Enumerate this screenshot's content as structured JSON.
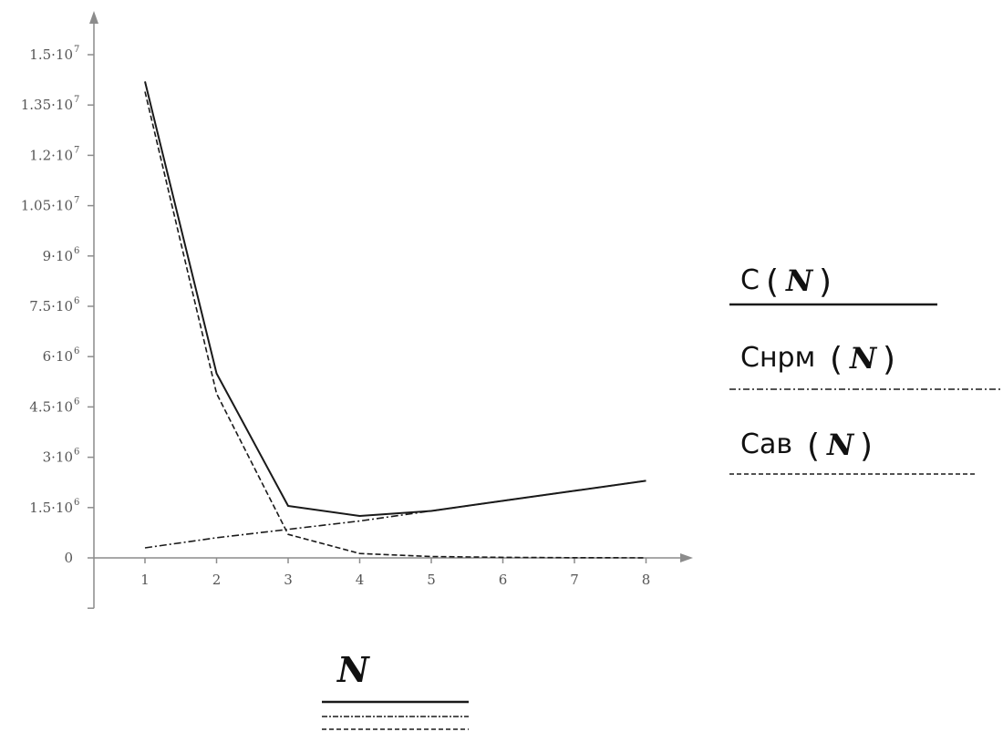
{
  "chart_data": {
    "type": "line",
    "x": [
      1,
      2,
      3,
      4,
      5,
      6,
      7,
      8
    ],
    "xticks": [
      "1",
      "2",
      "3",
      "4",
      "5",
      "6",
      "7",
      "8"
    ],
    "yticks": [
      {
        "value": 0,
        "label": "0",
        "sup": ""
      },
      {
        "value": 1500000,
        "label": "1.5·10",
        "sup": "6"
      },
      {
        "value": 3000000,
        "label": "3·10",
        "sup": "6"
      },
      {
        "value": 4500000,
        "label": "4.5·10",
        "sup": "6"
      },
      {
        "value": 6000000,
        "label": "6·10",
        "sup": "6"
      },
      {
        "value": 7500000,
        "label": "7.5·10",
        "sup": "6"
      },
      {
        "value": 9000000,
        "label": "9·10",
        "sup": "6"
      },
      {
        "value": 10500000,
        "label": "1.05·10",
        "sup": "7"
      },
      {
        "value": 12000000,
        "label": "1.2·10",
        "sup": "7"
      },
      {
        "value": 13500000,
        "label": "1.35·10",
        "sup": "7"
      },
      {
        "value": 15000000,
        "label": "1.5·10",
        "sup": "7"
      }
    ],
    "ylim": [
      -1500000,
      15000000
    ],
    "xlim": [
      0.4,
      8.7
    ],
    "series": [
      {
        "name": "C",
        "style": "solid",
        "values": [
          14200000,
          5500000,
          1550000,
          1250000,
          1400000,
          1700000,
          2000000,
          2300000
        ]
      },
      {
        "name": "Cнрм",
        "style": "dashdot",
        "values": [
          300000,
          600000,
          850000,
          1100000,
          1400000,
          1700000,
          2000000,
          2300000
        ]
      },
      {
        "name": "Cав",
        "style": "dashed",
        "values": [
          13900000,
          4900000,
          700000,
          130000,
          40000,
          15000,
          5000,
          2000
        ]
      }
    ],
    "legend": {
      "position": "right",
      "arg": "N",
      "entries": [
        {
          "name": "C",
          "style": "solid"
        },
        {
          "name": "Cнрм",
          "style": "dashdot"
        },
        {
          "name": "Cав",
          "style": "dashed"
        }
      ]
    },
    "xlabel": "N",
    "grid": false,
    "colors": {
      "axis": "#8c8c8c",
      "line": "#1a1a1a"
    }
  }
}
